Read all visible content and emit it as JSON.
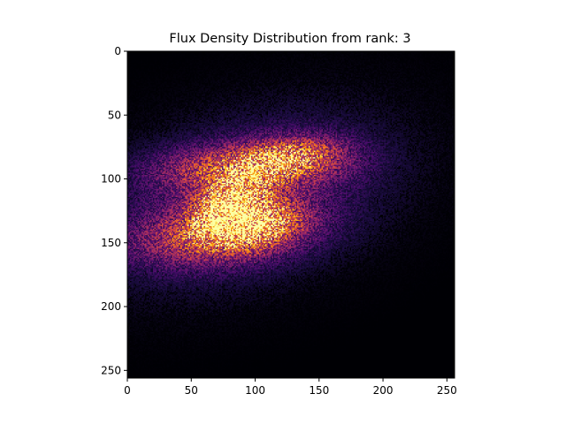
{
  "chart_data": {
    "type": "heatmap",
    "title": "Flux Density Distribution from rank: 3",
    "xlabel": "",
    "ylabel": "",
    "xlim": [
      0,
      256
    ],
    "ylim": [
      256,
      0
    ],
    "y_axis_inverted": true,
    "x_ticks": [
      0,
      50,
      100,
      150,
      200,
      250
    ],
    "y_ticks": [
      0,
      50,
      100,
      150,
      200,
      250
    ],
    "x_tick_labels": [
      "0",
      "50",
      "100",
      "150",
      "200",
      "250"
    ],
    "y_tick_labels": [
      "0",
      "50",
      "100",
      "150",
      "200",
      "250"
    ],
    "grid": false,
    "legend": "none",
    "colormap": "inferno",
    "colormap_stops": [
      "#000004",
      "#1b0c41",
      "#4a0c6b",
      "#781c6d",
      "#a52c60",
      "#cf4446",
      "#ed6925",
      "#fb9b06",
      "#f7d13d",
      "#fcffa4"
    ],
    "background_color": "#000004",
    "resolution": [
      256,
      256
    ],
    "intensity_hotspots": [
      {
        "x": 80,
        "y": 118,
        "peak": 0.85,
        "sx": 18,
        "sy": 14
      },
      {
        "x": 100,
        "y": 135,
        "peak": 0.7,
        "sx": 22,
        "sy": 12
      },
      {
        "x": 95,
        "y": 90,
        "peak": 0.55,
        "sx": 45,
        "sy": 12
      },
      {
        "x": 130,
        "y": 80,
        "peak": 0.4,
        "sx": 25,
        "sy": 10
      },
      {
        "x": 70,
        "y": 145,
        "peak": 0.45,
        "sx": 45,
        "sy": 15
      },
      {
        "x": 90,
        "y": 115,
        "peak": 0.3,
        "sx": 70,
        "sy": 45
      }
    ]
  }
}
